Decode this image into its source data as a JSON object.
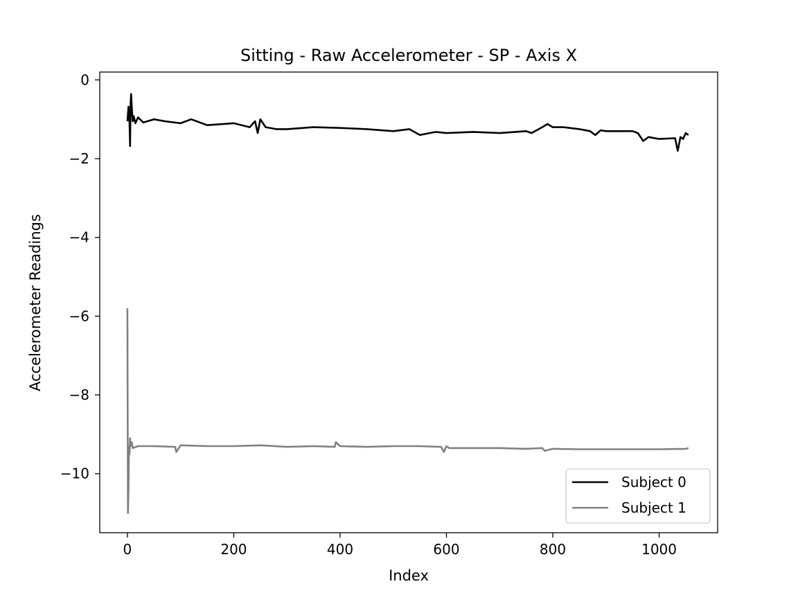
{
  "chart_data": {
    "type": "line",
    "title": "Sitting - Raw Accelerometer - SP - Axis X",
    "xlabel": "Index",
    "ylabel": "Accelerometer Readings",
    "xlim": [
      -52,
      1110
    ],
    "ylim": [
      -11.5,
      0.2
    ],
    "xticks": [
      0,
      200,
      400,
      600,
      800,
      1000
    ],
    "yticks": [
      0,
      -2,
      -4,
      -6,
      -8,
      -10
    ],
    "xtick_labels": [
      "0",
      "200",
      "400",
      "600",
      "800",
      "1000"
    ],
    "ytick_labels": [
      "0",
      "−2",
      "−4",
      "−6",
      "−8",
      "−10"
    ],
    "grid": false,
    "legend_position": "lower-right",
    "series": [
      {
        "name": "Subject 0",
        "color": "#000000",
        "x": [
          0,
          2,
          4,
          5,
          6,
          7,
          8,
          10,
          12,
          15,
          20,
          30,
          50,
          70,
          100,
          120,
          130,
          150,
          170,
          200,
          230,
          240,
          245,
          250,
          260,
          280,
          300,
          350,
          400,
          450,
          500,
          530,
          550,
          580,
          600,
          650,
          700,
          750,
          760,
          780,
          790,
          800,
          820,
          850,
          870,
          880,
          890,
          900,
          950,
          960,
          970,
          980,
          1000,
          1030,
          1035,
          1040,
          1045,
          1050,
          1055
        ],
        "y": [
          -1.05,
          -0.68,
          -1.1,
          -1.68,
          -0.6,
          -0.36,
          -0.65,
          -1.05,
          -0.92,
          -1.1,
          -0.95,
          -1.08,
          -1.0,
          -1.05,
          -1.1,
          -1.0,
          -1.05,
          -1.15,
          -1.13,
          -1.1,
          -1.2,
          -1.05,
          -1.35,
          -1.0,
          -1.2,
          -1.25,
          -1.25,
          -1.2,
          -1.22,
          -1.25,
          -1.3,
          -1.25,
          -1.4,
          -1.32,
          -1.35,
          -1.32,
          -1.35,
          -1.3,
          -1.35,
          -1.2,
          -1.12,
          -1.2,
          -1.2,
          -1.25,
          -1.3,
          -1.4,
          -1.28,
          -1.3,
          -1.3,
          -1.35,
          -1.55,
          -1.45,
          -1.5,
          -1.48,
          -1.8,
          -1.45,
          -1.5,
          -1.35,
          -1.4
        ]
      },
      {
        "name": "Subject 1",
        "color": "#808080",
        "x": [
          0,
          1,
          2,
          3,
          4,
          5,
          6,
          8,
          10,
          20,
          50,
          90,
          92,
          100,
          150,
          200,
          250,
          300,
          350,
          390,
          392,
          400,
          450,
          500,
          550,
          590,
          595,
          600,
          605,
          650,
          700,
          750,
          780,
          785,
          800,
          850,
          900,
          950,
          1000,
          1050,
          1055
        ],
        "y": [
          -5.8,
          -11.0,
          -10.4,
          -9.3,
          -9.5,
          -9.1,
          -9.3,
          -9.2,
          -9.35,
          -9.3,
          -9.3,
          -9.32,
          -9.45,
          -9.28,
          -9.3,
          -9.3,
          -9.28,
          -9.32,
          -9.3,
          -9.32,
          -9.2,
          -9.3,
          -9.32,
          -9.3,
          -9.3,
          -9.32,
          -9.45,
          -9.3,
          -9.35,
          -9.35,
          -9.35,
          -9.37,
          -9.35,
          -9.42,
          -9.37,
          -9.38,
          -9.38,
          -9.38,
          -9.38,
          -9.37,
          -9.35
        ]
      }
    ]
  }
}
